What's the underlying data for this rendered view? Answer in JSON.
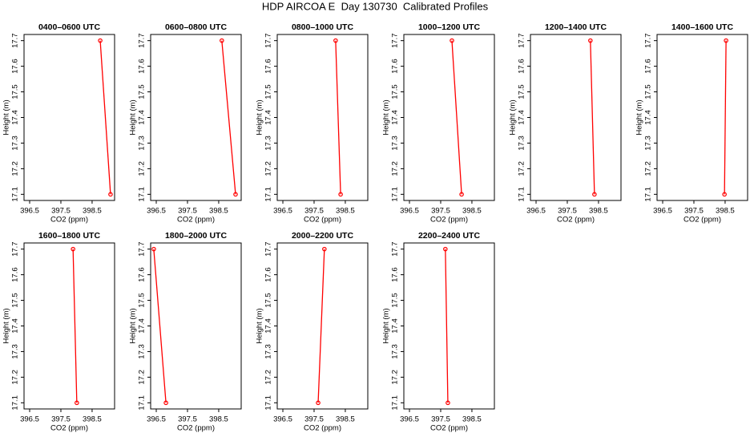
{
  "title": "HDP AIRCOA E  Day 130730  Calibrated Profiles",
  "chart_data": [
    {
      "type": "line",
      "title": "0400–0600 UTC",
      "x_label": "CO2 (ppm)",
      "y_label": "Height (m)",
      "x": [
        398.76,
        399.09
      ],
      "series": [
        {
          "color": "#ff0000",
          "values": [
            17.7,
            17.1
          ]
        }
      ],
      "xlim": [
        396.32,
        399.22
      ],
      "xticks": [
        396.5,
        397.5,
        398.5
      ],
      "ylim": [
        17.076,
        17.724
      ],
      "yticks": [
        17.1,
        17.2,
        17.3,
        17.4,
        17.5,
        17.6,
        17.7
      ]
    },
    {
      "type": "line",
      "title": "0600–0800 UTC",
      "x_label": "CO2 (ppm)",
      "y_label": "Height (m)",
      "x": [
        398.6,
        399.04
      ],
      "series": [
        {
          "color": "#ff0000",
          "values": [
            17.7,
            17.1
          ]
        }
      ],
      "xlim": [
        396.32,
        399.22
      ],
      "xticks": [
        396.5,
        397.5,
        398.5
      ],
      "ylim": [
        17.076,
        17.724
      ],
      "yticks": [
        17.1,
        17.2,
        17.3,
        17.4,
        17.5,
        17.6,
        17.7
      ]
    },
    {
      "type": "line",
      "title": "0800–1000 UTC",
      "x_label": "CO2 (ppm)",
      "y_label": "Height (m)",
      "x": [
        398.19,
        398.35
      ],
      "series": [
        {
          "color": "#ff0000",
          "values": [
            17.7,
            17.1
          ]
        }
      ],
      "xlim": [
        396.32,
        399.22
      ],
      "xticks": [
        396.5,
        397.5,
        398.5
      ],
      "ylim": [
        17.076,
        17.724
      ],
      "yticks": [
        17.1,
        17.2,
        17.3,
        17.4,
        17.5,
        17.6,
        17.7
      ]
    },
    {
      "type": "line",
      "title": "1000–1200 UTC",
      "x_label": "CO2 (ppm)",
      "y_label": "Height (m)",
      "x": [
        397.86,
        398.17
      ],
      "series": [
        {
          "color": "#ff0000",
          "values": [
            17.7,
            17.1
          ]
        }
      ],
      "xlim": [
        396.32,
        399.22
      ],
      "xticks": [
        396.5,
        397.5,
        398.5
      ],
      "ylim": [
        17.076,
        17.724
      ],
      "yticks": [
        17.1,
        17.2,
        17.3,
        17.4,
        17.5,
        17.6,
        17.7
      ]
    },
    {
      "type": "line",
      "title": "1200–1400 UTC",
      "x_label": "CO2 (ppm)",
      "y_label": "Height (m)",
      "x": [
        398.24,
        398.37
      ],
      "series": [
        {
          "color": "#ff0000",
          "values": [
            17.7,
            17.1
          ]
        }
      ],
      "xlim": [
        396.32,
        399.22
      ],
      "xticks": [
        396.5,
        397.5,
        398.5
      ],
      "ylim": [
        17.076,
        17.724
      ],
      "yticks": [
        17.1,
        17.2,
        17.3,
        17.4,
        17.5,
        17.6,
        17.7
      ]
    },
    {
      "type": "line",
      "title": "1400–1600 UTC",
      "x_label": "CO2 (ppm)",
      "y_label": "Height (m)",
      "x": [
        398.53,
        398.48
      ],
      "series": [
        {
          "color": "#ff0000",
          "values": [
            17.7,
            17.1
          ]
        }
      ],
      "xlim": [
        396.32,
        399.22
      ],
      "xticks": [
        396.5,
        397.5,
        398.5
      ],
      "ylim": [
        17.076,
        17.724
      ],
      "yticks": [
        17.1,
        17.2,
        17.3,
        17.4,
        17.5,
        17.6,
        17.7
      ]
    },
    {
      "type": "line",
      "title": "1600–1800 UTC",
      "x_label": "CO2 (ppm)",
      "y_label": "Height (m)",
      "x": [
        397.89,
        398.01
      ],
      "series": [
        {
          "color": "#ff0000",
          "values": [
            17.7,
            17.1
          ]
        }
      ],
      "xlim": [
        396.32,
        399.22
      ],
      "xticks": [
        396.5,
        397.5,
        398.5
      ],
      "ylim": [
        17.076,
        17.724
      ],
      "yticks": [
        17.1,
        17.2,
        17.3,
        17.4,
        17.5,
        17.6,
        17.7
      ]
    },
    {
      "type": "line",
      "title": "1800–2000 UTC",
      "x_label": "CO2 (ppm)",
      "y_label": "Height (m)",
      "x": [
        396.42,
        396.81
      ],
      "series": [
        {
          "color": "#ff0000",
          "values": [
            17.7,
            17.1
          ]
        }
      ],
      "xlim": [
        396.32,
        399.22
      ],
      "xticks": [
        396.5,
        397.5,
        398.5
      ],
      "ylim": [
        17.076,
        17.724
      ],
      "yticks": [
        17.1,
        17.2,
        17.3,
        17.4,
        17.5,
        17.6,
        17.7
      ]
    },
    {
      "type": "line",
      "title": "2000–2200 UTC",
      "x_label": "CO2 (ppm)",
      "y_label": "Height (m)",
      "x": [
        397.83,
        397.63
      ],
      "series": [
        {
          "color": "#ff0000",
          "values": [
            17.7,
            17.1
          ]
        }
      ],
      "xlim": [
        396.32,
        399.22
      ],
      "xticks": [
        396.5,
        397.5,
        398.5
      ],
      "ylim": [
        17.076,
        17.724
      ],
      "yticks": [
        17.1,
        17.2,
        17.3,
        17.4,
        17.5,
        17.6,
        17.7
      ]
    },
    {
      "type": "line",
      "title": "2200–2400 UTC",
      "x_label": "CO2 (ppm)",
      "y_label": "Height (m)",
      "x": [
        397.65,
        397.73
      ],
      "series": [
        {
          "color": "#ff0000",
          "values": [
            17.7,
            17.1
          ]
        }
      ],
      "xlim": [
        396.32,
        399.22
      ],
      "xticks": [
        396.5,
        397.5,
        398.5
      ],
      "ylim": [
        17.076,
        17.724
      ],
      "yticks": [
        17.1,
        17.2,
        17.3,
        17.4,
        17.5,
        17.6,
        17.7
      ]
    }
  ]
}
